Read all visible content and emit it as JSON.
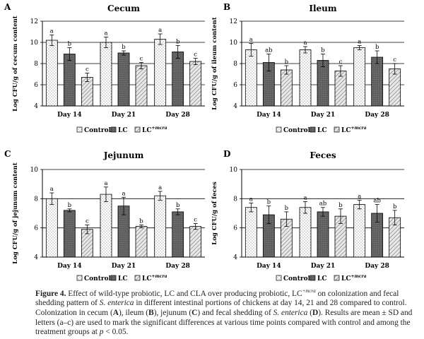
{
  "chart_data": [
    {
      "letter": "A",
      "title": "Cecum",
      "type": "bar",
      "ylabel": "Log CFU/g of cecum content",
      "ylim": [
        4,
        12
      ],
      "yticks": [
        4,
        6,
        8,
        10,
        12
      ],
      "categories": [
        "Day 14",
        "Day 21",
        "Day 28"
      ],
      "series": [
        {
          "name": "Control",
          "values": [
            10.2,
            10.0,
            10.3
          ],
          "sd": [
            0.5,
            0.5,
            0.5
          ],
          "letters": [
            "a",
            "a",
            "a"
          ]
        },
        {
          "name": "LC",
          "values": [
            8.9,
            9.0,
            9.1
          ],
          "sd": [
            0.6,
            0.2,
            0.6
          ],
          "letters": [
            "b",
            "b",
            "b"
          ]
        },
        {
          "name": "LC+mcra",
          "values": [
            6.7,
            7.8,
            8.2
          ],
          "sd": [
            0.4,
            0.3,
            0.3
          ],
          "letters": [
            "c",
            "c",
            "c"
          ]
        }
      ]
    },
    {
      "letter": "B",
      "title": "Ileum",
      "type": "bar",
      "ylabel": "Log CFU/g of ileum content",
      "ylim": [
        4,
        12
      ],
      "yticks": [
        4,
        6,
        8,
        10,
        12
      ],
      "categories": [
        "Day 14",
        "Day 21",
        "Day 28"
      ],
      "series": [
        {
          "name": "Control",
          "values": [
            9.3,
            9.3,
            9.5
          ],
          "sd": [
            0.6,
            0.3,
            0.2
          ],
          "letters": [
            "a",
            "a",
            "a"
          ]
        },
        {
          "name": "LC",
          "values": [
            8.1,
            8.3,
            8.6
          ],
          "sd": [
            0.8,
            0.6,
            0.6
          ],
          "letters": [
            "ab",
            "b",
            "b"
          ]
        },
        {
          "name": "LC+mcra",
          "values": [
            7.4,
            7.3,
            7.5
          ],
          "sd": [
            0.4,
            0.5,
            0.5
          ],
          "letters": [
            "b",
            "c",
            "c"
          ]
        }
      ]
    },
    {
      "letter": "C",
      "title": "Jejunum",
      "type": "bar",
      "ylabel": "Log CFU/g of jejunum content",
      "ylim": [
        4,
        10
      ],
      "yticks": [
        4,
        6,
        8,
        10
      ],
      "categories": [
        "Day 14",
        "Day 21",
        "Day 28"
      ],
      "series": [
        {
          "name": "Control",
          "values": [
            8.0,
            8.3,
            8.2
          ],
          "sd": [
            0.4,
            0.5,
            0.3
          ],
          "letters": [
            "a",
            "a",
            "a"
          ]
        },
        {
          "name": "LC",
          "values": [
            7.2,
            7.5,
            7.1
          ],
          "sd": [
            0.1,
            0.6,
            0.2
          ],
          "letters": [
            "b",
            "a",
            "b"
          ]
        },
        {
          "name": "LC+mcra",
          "values": [
            5.9,
            6.1,
            6.1
          ],
          "sd": [
            0.3,
            0.1,
            0.2
          ],
          "letters": [
            "c",
            "b",
            "c"
          ]
        }
      ]
    },
    {
      "letter": "D",
      "title": "Feces",
      "type": "bar",
      "ylabel": "Log CFU/g of feces",
      "ylim": [
        4,
        10
      ],
      "yticks": [
        4,
        6,
        8,
        10
      ],
      "categories": [
        "Day 14",
        "Day 21",
        "Day 28"
      ],
      "series": [
        {
          "name": "Control",
          "values": [
            7.4,
            7.4,
            7.6
          ],
          "sd": [
            0.3,
            0.4,
            0.3
          ],
          "letters": [
            "a",
            "a",
            "a"
          ]
        },
        {
          "name": "LC",
          "values": [
            6.9,
            7.1,
            7.0
          ],
          "sd": [
            0.6,
            0.3,
            0.6
          ],
          "letters": [
            "b",
            "ab",
            "ab"
          ]
        },
        {
          "name": "LC+mcra",
          "values": [
            6.6,
            6.8,
            6.7
          ],
          "sd": [
            0.5,
            0.5,
            0.5
          ],
          "letters": [
            "b",
            "b",
            "b"
          ]
        }
      ]
    }
  ],
  "legend": {
    "items": [
      {
        "label": "Control",
        "sup": ""
      },
      {
        "label": "LC",
        "sup": ""
      },
      {
        "label": "LC",
        "sup": "+mcra"
      }
    ]
  },
  "colors": {
    "control": "#ffffff",
    "lc": "#6b6b6b",
    "lcmcra": "#d4d4d4",
    "axis": "#000000"
  },
  "caption": {
    "fig_label": "Figure 4.",
    "s1": " Effect of wild-type probiotic, LC and CLA over producing probiotic, LC",
    "s1_sup": "+mcra",
    "s2": " on colonization and fecal shedding pattern of ",
    "s2_i": "S. enterica",
    "s3": " in different intestinal portions of chickens at day 14, 21 and 28 compared to control. Colonization in cecum (",
    "A": "A",
    "s4": "), ileum (",
    "B": "B",
    "s5": "), jejunum (",
    "C": "C",
    "s6": ") and fecal shedding of ",
    "s6_i": "S. enterica",
    "s7": " (",
    "D": "D",
    "s8": "). Results are mean ± SD and letters (a–c) are used to mark the significant differences at various time points compared with control and among the treatment groups at ",
    "p": "p",
    "s9": " < 0.05."
  }
}
